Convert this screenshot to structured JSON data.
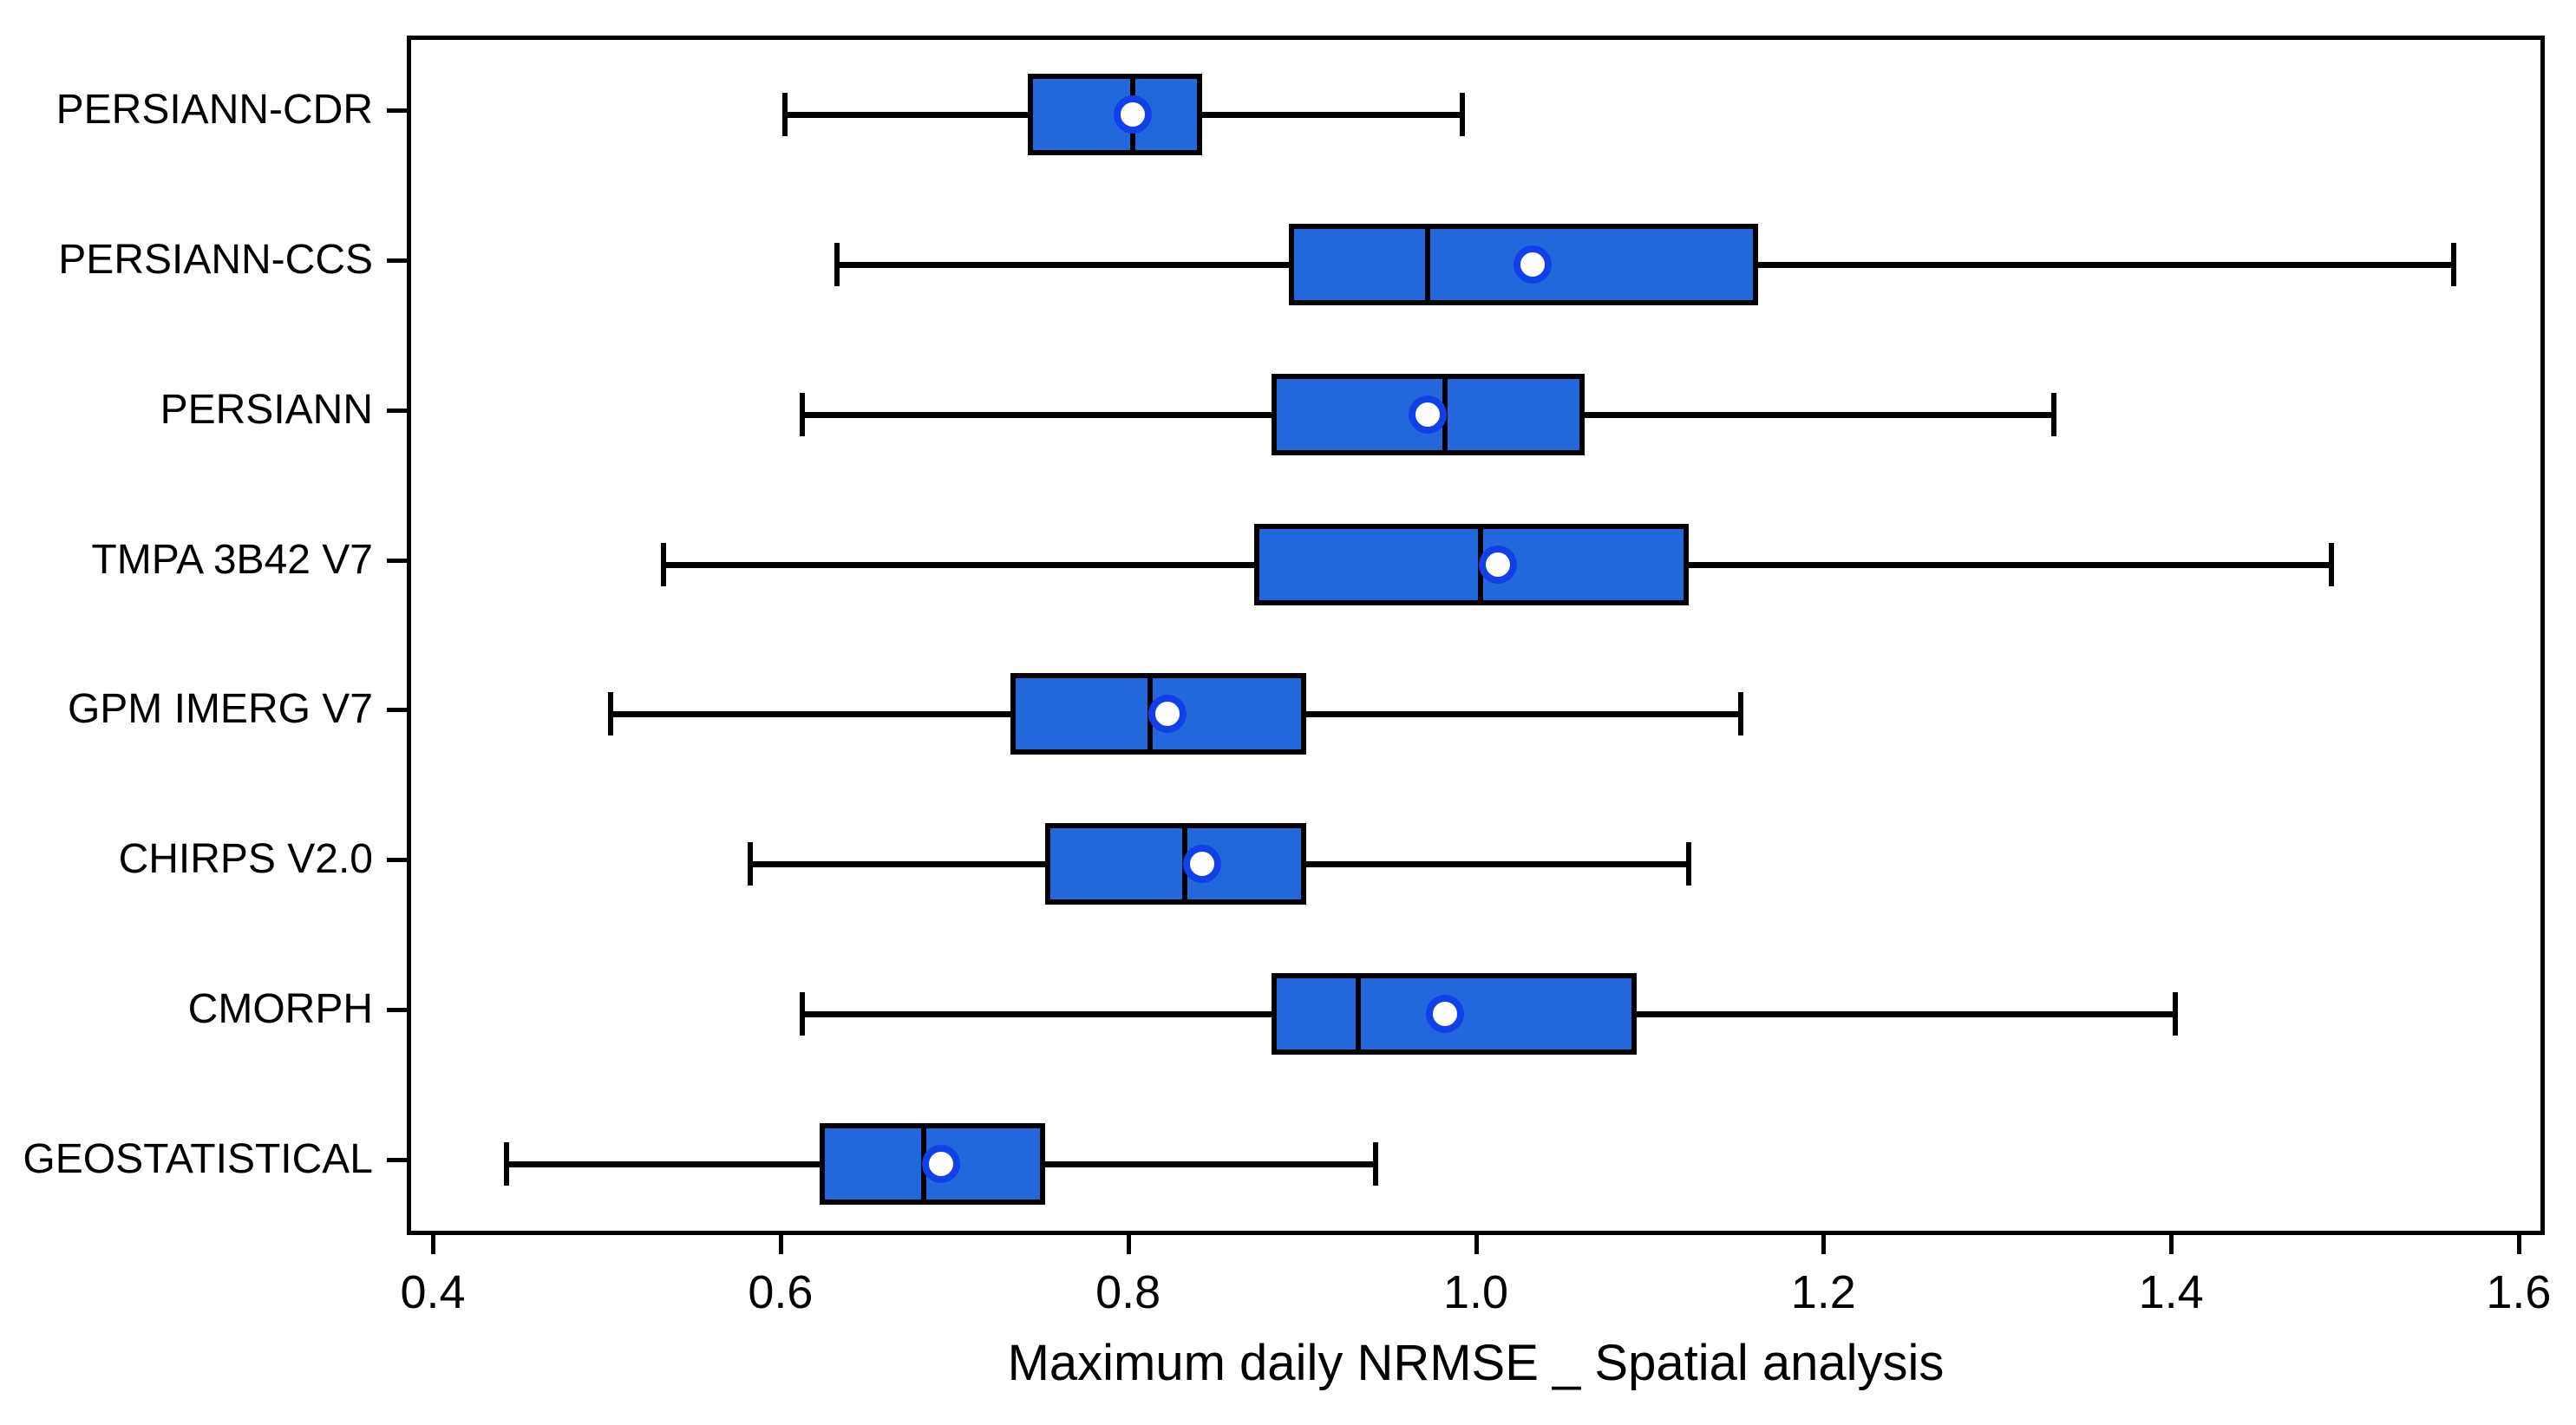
{
  "chart_data": {
    "type": "boxplot",
    "orientation": "horizontal",
    "xlabel": "Maximum daily NRMSE _ Spatial analysis",
    "xlim": [
      0.385,
      1.615
    ],
    "xticks": [
      {
        "value": 0.4,
        "label": "0.4"
      },
      {
        "value": 0.6,
        "label": "0.6"
      },
      {
        "value": 0.8,
        "label": "0.8"
      },
      {
        "value": 1.0,
        "label": "1.0"
      },
      {
        "value": 1.2,
        "label": "1.2"
      },
      {
        "value": 1.4,
        "label": "1.4"
      },
      {
        "value": 1.6,
        "label": "1.6"
      }
    ],
    "categories": [
      "PERSIANN-CDR",
      "PERSIANN-CCS",
      "PERSIANN",
      "TMPA 3B42 V7",
      "GPM IMERG V7",
      "CHIRPS V2.0",
      "CMORPH",
      "GEOSTATISTICAL"
    ],
    "boxes": [
      {
        "category": "PERSIANN-CDR",
        "whisker_low": 0.6,
        "q1": 0.74,
        "median": 0.8,
        "q3": 0.84,
        "whisker_high": 0.99,
        "mean": 0.8
      },
      {
        "category": "PERSIANN-CCS",
        "whisker_low": 0.63,
        "q1": 0.89,
        "median": 0.97,
        "q3": 1.16,
        "whisker_high": 1.56,
        "mean": 1.03
      },
      {
        "category": "PERSIANN",
        "whisker_low": 0.61,
        "q1": 0.88,
        "median": 0.98,
        "q3": 1.06,
        "whisker_high": 1.33,
        "mean": 0.97
      },
      {
        "category": "TMPA 3B42 V7",
        "whisker_low": 0.53,
        "q1": 0.87,
        "median": 1.0,
        "q3": 1.12,
        "whisker_high": 1.49,
        "mean": 1.01
      },
      {
        "category": "GPM IMERG V7",
        "whisker_low": 0.5,
        "q1": 0.73,
        "median": 0.81,
        "q3": 0.9,
        "whisker_high": 1.15,
        "mean": 0.82
      },
      {
        "category": "CHIRPS V2.0",
        "whisker_low": 0.58,
        "q1": 0.75,
        "median": 0.83,
        "q3": 0.9,
        "whisker_high": 1.12,
        "mean": 0.84
      },
      {
        "category": "CMORPH",
        "whisker_low": 0.61,
        "q1": 0.88,
        "median": 0.93,
        "q3": 1.09,
        "whisker_high": 1.4,
        "mean": 0.98
      },
      {
        "category": "GEOSTATISTICAL",
        "whisker_low": 0.44,
        "q1": 0.62,
        "median": 0.68,
        "q3": 0.75,
        "whisker_high": 0.94,
        "mean": 0.69
      }
    ],
    "colors": {
      "box_fill": "#2268DC",
      "box_edge": "#000000",
      "median_line": "#000000",
      "whisker": "#000000",
      "mean_marker_fill": "#FFFFFF",
      "mean_marker_edge": "#1240E8"
    },
    "legend": "none",
    "grid": false
  }
}
